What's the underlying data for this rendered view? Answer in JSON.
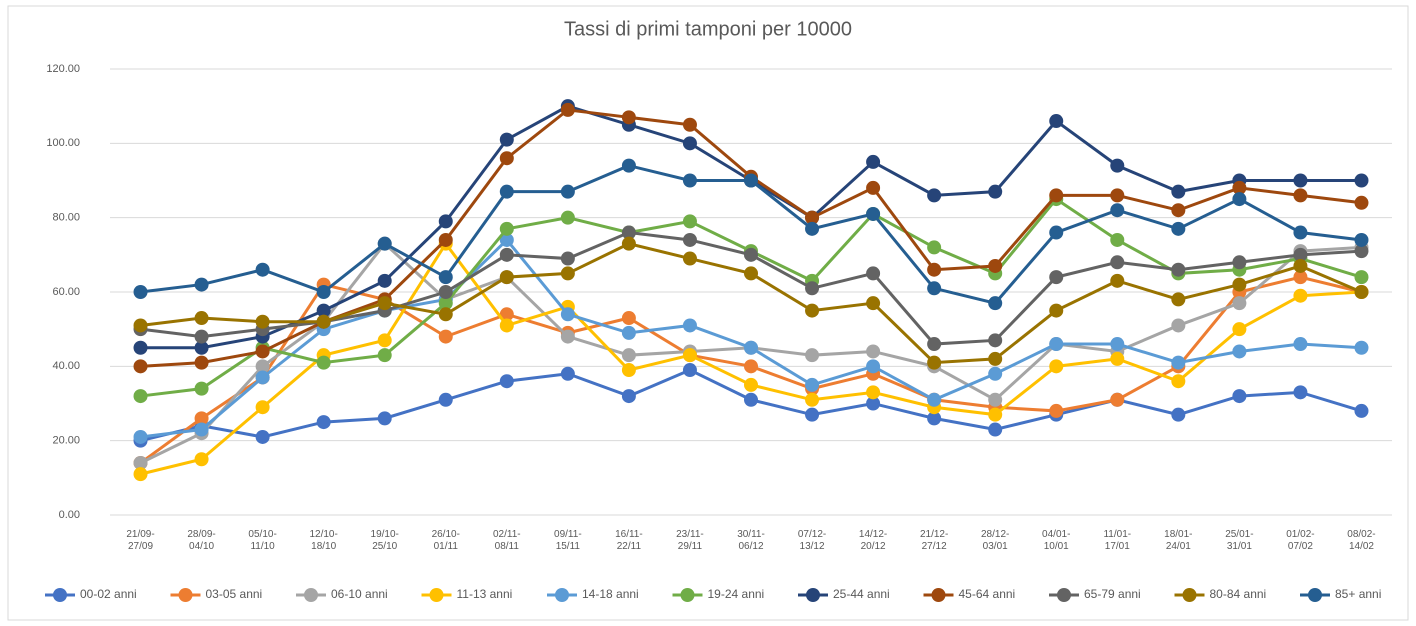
{
  "chart_data": {
    "type": "line",
    "title": "Tassi di primi tamponi per 10000",
    "categories": [
      "21/09-27/09",
      "28/09-04/10",
      "05/10-11/10",
      "12/10-18/10",
      "19/10-25/10",
      "26/10-01/11",
      "02/11-08/11",
      "09/11-15/11",
      "16/11-22/11",
      "23/11-29/11",
      "30/11-06/12",
      "07/12-13/12",
      "14/12-20/12",
      "21/12-27/12",
      "28/12-03/01",
      "04/01-10/01",
      "11/01-17/01",
      "18/01-24/01",
      "25/01-31/01",
      "01/02-07/02",
      "08/02-14/02"
    ],
    "ylim": [
      0,
      120
    ],
    "yticks": [
      {
        "value": 0,
        "label": "0.00"
      },
      {
        "value": 20,
        "label": "20.00"
      },
      {
        "value": 40,
        "label": "40.00"
      },
      {
        "value": 60,
        "label": "60.00"
      },
      {
        "value": 80,
        "label": "80.00"
      },
      {
        "value": 100,
        "label": "100.00"
      },
      {
        "value": 120,
        "label": "120.00"
      }
    ],
    "grid": true,
    "legend": "bottom",
    "series": [
      {
        "name": "00-02 anni",
        "color": "#4472c4",
        "values": [
          20,
          24,
          21,
          25,
          26,
          31,
          36,
          38,
          32,
          39,
          31,
          27,
          30,
          26,
          23,
          27,
          31,
          27,
          32,
          33,
          28
        ]
      },
      {
        "name": "03-05 anni",
        "color": "#ed7d31",
        "values": [
          14,
          26,
          37,
          62,
          58,
          48,
          54,
          49,
          53,
          43,
          40,
          34,
          38,
          31,
          29,
          28,
          31,
          40,
          60,
          64,
          60
        ]
      },
      {
        "name": "06-10 anni",
        "color": "#a5a5a5",
        "values": [
          14,
          22,
          40,
          52,
          73,
          58,
          64,
          48,
          43,
          44,
          45,
          43,
          44,
          40,
          31,
          46,
          44,
          51,
          57,
          71,
          72
        ]
      },
      {
        "name": "11-13 anni",
        "color": "#ffc000",
        "values": [
          11,
          15,
          29,
          43,
          47,
          73,
          51,
          56,
          39,
          43,
          35,
          31,
          33,
          29,
          27,
          40,
          42,
          36,
          50,
          59,
          60
        ]
      },
      {
        "name": "14-18 anni",
        "color": "#5b9bd5",
        "values": [
          21,
          23,
          37,
          50,
          55,
          58,
          74,
          54,
          49,
          51,
          45,
          35,
          40,
          31,
          38,
          46,
          46,
          41,
          44,
          46,
          45
        ]
      },
      {
        "name": "19-24 anni",
        "color": "#70ad47",
        "values": [
          32,
          34,
          45,
          41,
          43,
          57,
          77,
          80,
          76,
          79,
          71,
          63,
          81,
          72,
          65,
          85,
          74,
          65,
          66,
          69,
          64
        ]
      },
      {
        "name": "25-44 anni",
        "color": "#264478",
        "values": [
          45,
          45,
          48,
          55,
          63,
          79,
          101,
          110,
          105,
          100,
          90,
          80,
          95,
          86,
          87,
          106,
          94,
          87,
          90,
          90,
          90
        ]
      },
      {
        "name": "45-64 anni",
        "color": "#9e480e",
        "values": [
          40,
          41,
          44,
          52,
          58,
          74,
          96,
          109,
          107,
          105,
          91,
          80,
          88,
          66,
          67,
          86,
          86,
          82,
          88,
          86,
          84
        ]
      },
      {
        "name": "65-79 anni",
        "color": "#636363",
        "values": [
          50,
          48,
          50,
          52,
          55,
          60,
          70,
          69,
          76,
          74,
          70,
          61,
          65,
          46,
          47,
          64,
          68,
          66,
          68,
          70,
          71
        ]
      },
      {
        "name": "80-84 anni",
        "color": "#997300",
        "values": [
          51,
          53,
          52,
          52,
          57,
          54,
          64,
          65,
          73,
          69,
          65,
          55,
          57,
          41,
          42,
          55,
          63,
          58,
          62,
          67,
          60
        ]
      },
      {
        "name": "85+ anni",
        "color": "#255e91",
        "values": [
          60,
          62,
          66,
          60,
          73,
          64,
          87,
          87,
          94,
          90,
          90,
          77,
          81,
          61,
          57,
          76,
          82,
          77,
          85,
          76,
          74
        ]
      }
    ]
  }
}
